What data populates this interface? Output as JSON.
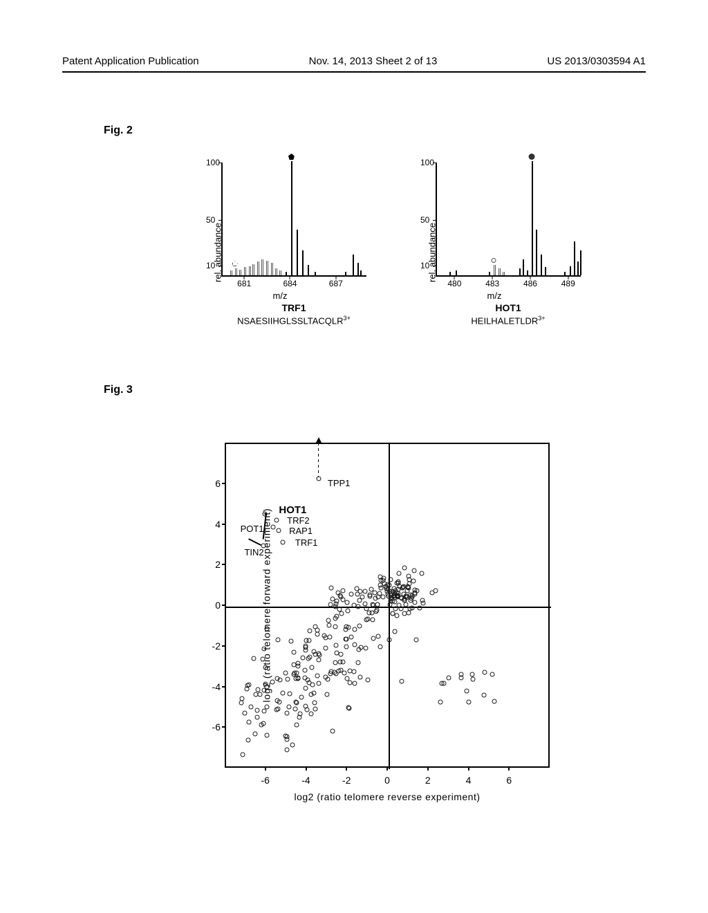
{
  "header": {
    "left": "Patent Application Publication",
    "center": "Nov. 14, 2013  Sheet 2 of 13",
    "right": "US 2013/0303594 A1"
  },
  "fig2": {
    "label": "Fig. 2",
    "ylabel": "rel. abundance",
    "xlabel": "m/z",
    "yticks": [
      10,
      50,
      100
    ],
    "yaxis": {
      "min": 0,
      "max": 100
    },
    "panels": [
      {
        "title": "TRF1",
        "sequence": "NSAESIIHGLSSLTACQLR",
        "charge": "3+",
        "marker": "pentagon",
        "xmin": 679.5,
        "xmax": 689,
        "xticks": [
          681,
          684,
          687
        ],
        "main_peak_x": 684.0,
        "main_peak_h": 100,
        "small_marker_x": 680.3,
        "peaks": [
          {
            "x": 680.0,
            "h": 4,
            "hatched": true
          },
          {
            "x": 680.3,
            "h": 6,
            "hatched": true
          },
          {
            "x": 680.6,
            "h": 5,
            "hatched": true
          },
          {
            "x": 680.9,
            "h": 7,
            "hatched": true
          },
          {
            "x": 681.2,
            "h": 8,
            "hatched": true
          },
          {
            "x": 681.45,
            "h": 10,
            "hatched": true
          },
          {
            "x": 681.75,
            "h": 12,
            "hatched": true
          },
          {
            "x": 682.05,
            "h": 14,
            "hatched": true
          },
          {
            "x": 682.35,
            "h": 13,
            "hatched": true
          },
          {
            "x": 682.65,
            "h": 11,
            "hatched": true
          },
          {
            "x": 682.95,
            "h": 6,
            "hatched": true
          },
          {
            "x": 683.2,
            "h": 4,
            "hatched": true
          },
          {
            "x": 683.6,
            "h": 3
          },
          {
            "x": 684.0,
            "h": 100
          },
          {
            "x": 684.35,
            "h": 40
          },
          {
            "x": 684.7,
            "h": 22
          },
          {
            "x": 685.05,
            "h": 9
          },
          {
            "x": 685.5,
            "h": 3
          },
          {
            "x": 687.5,
            "h": 3
          },
          {
            "x": 688.0,
            "h": 18
          },
          {
            "x": 688.3,
            "h": 11
          },
          {
            "x": 688.5,
            "h": 4
          }
        ]
      },
      {
        "title": "HOT1",
        "sequence": "HEILHALETLDR",
        "charge": "3+",
        "marker": "circle",
        "xmin": 478.5,
        "xmax": 490,
        "xticks": [
          480,
          483,
          486,
          489
        ],
        "main_peak_x": 486.0,
        "main_peak_h": 100,
        "small_marker_x": 483.0,
        "peaks": [
          {
            "x": 479.5,
            "h": 3
          },
          {
            "x": 480.0,
            "h": 4
          },
          {
            "x": 482.6,
            "h": 3
          },
          {
            "x": 483.0,
            "h": 9,
            "hatched": true
          },
          {
            "x": 483.35,
            "h": 6,
            "hatched": true
          },
          {
            "x": 483.7,
            "h": 3,
            "hatched": true
          },
          {
            "x": 485.0,
            "h": 6
          },
          {
            "x": 485.3,
            "h": 14
          },
          {
            "x": 485.6,
            "h": 4
          },
          {
            "x": 486.0,
            "h": 100
          },
          {
            "x": 486.35,
            "h": 40
          },
          {
            "x": 486.7,
            "h": 18
          },
          {
            "x": 487.05,
            "h": 7
          },
          {
            "x": 488.6,
            "h": 3
          },
          {
            "x": 489.0,
            "h": 8
          },
          {
            "x": 489.35,
            "h": 30
          },
          {
            "x": 489.6,
            "h": 12
          },
          {
            "x": 489.85,
            "h": 22
          }
        ]
      }
    ]
  },
  "fig3": {
    "label": "Fig. 3",
    "ylabel": "log2 (ratio telomere forward experiment)",
    "xlabel": "log2 (ratio telomere reverse experiment)",
    "xlim": [
      -8,
      8
    ],
    "ylim": [
      -8,
      8
    ],
    "xticks": [
      -6,
      -4,
      -2,
      0,
      2,
      4,
      6
    ],
    "yticks": [
      -6,
      -4,
      -2,
      0,
      2,
      4,
      6
    ],
    "axis_line_x": 0,
    "axis_line_y": 0,
    "labeled_points": [
      {
        "label": "HOT1",
        "x": -6.1,
        "y": 4.55,
        "bold": true,
        "lx": -5.4,
        "ly": 4.8,
        "arrow": [
          [
            -6.0,
            4.6
          ],
          [
            -6.15,
            3.3
          ]
        ]
      },
      {
        "label": "TPP1",
        "x": -3.45,
        "y": 6.3,
        "lx": -3.0,
        "ly": 6.1,
        "arrow_up": true
      },
      {
        "label": "TRF2",
        "x": -5.5,
        "y": 4.25,
        "lx": -5.0,
        "ly": 4.25
      },
      {
        "label": "POT1",
        "x": -5.7,
        "y": 3.9,
        "lx": -7.3,
        "ly": 3.85
      },
      {
        "label": "RAP1",
        "x": -5.4,
        "y": 3.75,
        "lx": -4.9,
        "ly": 3.75
      },
      {
        "label": "TRF1",
        "x": -5.2,
        "y": 3.15,
        "lx": -4.6,
        "ly": 3.15
      },
      {
        "label": "TIN2",
        "x": -6.15,
        "y": 3.0,
        "lx": -7.1,
        "ly": 2.7,
        "arrow": [
          [
            -6.3,
            3.0
          ],
          [
            -6.9,
            3.3
          ]
        ]
      }
    ],
    "background_cluster": {
      "n": 340,
      "seed": 7
    }
  }
}
